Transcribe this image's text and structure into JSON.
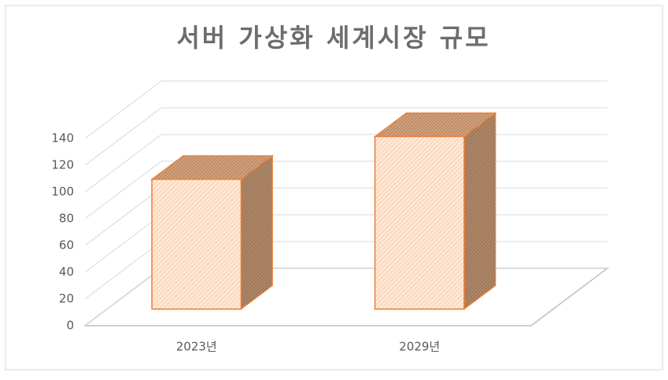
{
  "chart_data": {
    "type": "bar3d",
    "title": "서버 가상화 세계시장 규모",
    "categories": [
      "2023년",
      "2029년"
    ],
    "values": [
      97,
      129
    ],
    "color": "#ed7d31",
    "ylim": [
      0,
      140
    ],
    "yticks": [
      0,
      20,
      40,
      60,
      80,
      100,
      120,
      140
    ],
    "grid": true
  }
}
